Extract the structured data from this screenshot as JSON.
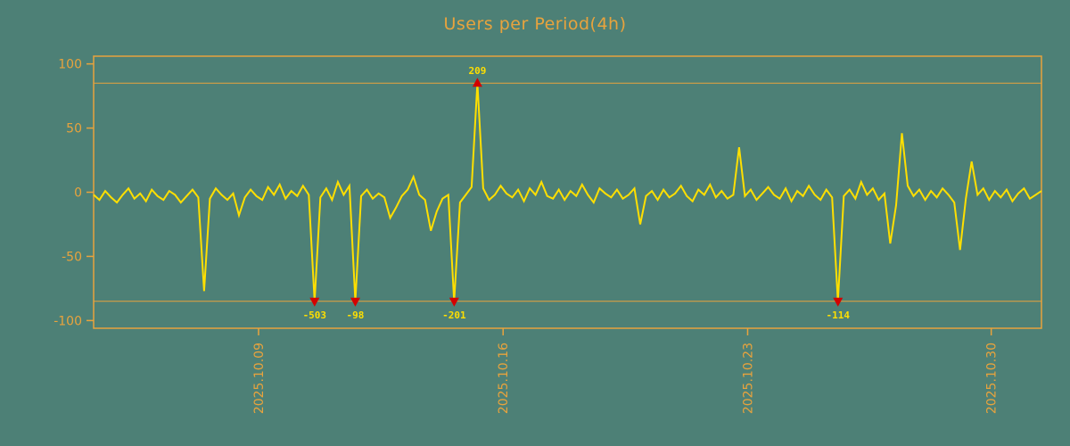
{
  "chart_data": {
    "type": "line",
    "title": "Users per Period(4h)",
    "ylabel": "",
    "xlabel": "",
    "ylim": [
      -106,
      106
    ],
    "yticks": [
      100,
      50,
      0,
      -50,
      -100
    ],
    "clip": 85,
    "grid": "off",
    "legend": "none",
    "x_axis": {
      "labels": [
        "2025.10.09",
        "2025.10.16",
        "2025.10.23",
        "2025.10.30"
      ],
      "positions": [
        0.174,
        0.432,
        0.69,
        0.947
      ]
    },
    "series": [
      {
        "name": "users",
        "values": [
          -2,
          -6,
          1,
          -4,
          -8,
          -2,
          3,
          -5,
          -1,
          -7,
          2,
          -3,
          -6,
          1,
          -2,
          -8,
          -3,
          2,
          -4,
          -77,
          -5,
          3,
          -2,
          -6,
          -1,
          -18,
          -4,
          2,
          -3,
          -6,
          4,
          -2,
          6,
          -5,
          1,
          -3,
          5,
          -2,
          -503,
          -4,
          3,
          -6,
          8,
          -2,
          5,
          -98,
          -3,
          2,
          -5,
          -1,
          -4,
          -20,
          -12,
          -3,
          2,
          12,
          -2,
          -6,
          -30,
          -15,
          -5,
          -2,
          -201,
          -8,
          -2,
          4,
          209,
          3,
          -6,
          -2,
          5,
          -1,
          -4,
          2,
          -7,
          3,
          -2,
          8,
          -3,
          -5,
          2,
          -6,
          1,
          -3,
          6,
          -2,
          -8,
          3,
          -1,
          -4,
          2,
          -5,
          -2,
          3,
          -25,
          -3,
          1,
          -6,
          2,
          -4,
          -1,
          5,
          -3,
          -7,
          2,
          -2,
          6,
          -4,
          1,
          -5,
          -2,
          35,
          -3,
          2,
          -6,
          -1,
          4,
          -2,
          -5,
          3,
          -7,
          1,
          -3,
          5,
          -2,
          -6,
          2,
          -4,
          -114,
          -3,
          2,
          -5,
          8,
          -2,
          3,
          -6,
          -1,
          -40,
          -10,
          46,
          5,
          -3,
          2,
          -6,
          1,
          -4,
          3,
          -2,
          -8,
          -45,
          -5,
          24,
          -2,
          3,
          -6,
          1,
          -4,
          2,
          -7,
          -1,
          3,
          -5,
          -2,
          1
        ]
      }
    ],
    "annotations": [
      {
        "index": 38,
        "value": -503,
        "label": "-503",
        "dir": "down"
      },
      {
        "index": 45,
        "value": -98,
        "label": "-98",
        "dir": "down"
      },
      {
        "index": 62,
        "value": -201,
        "label": "-201",
        "dir": "down"
      },
      {
        "index": 66,
        "value": 209,
        "label": "209",
        "dir": "up"
      },
      {
        "index": 128,
        "value": -114,
        "label": "-114",
        "dir": "down"
      }
    ],
    "colors": {
      "background": "#4d8076",
      "axis": "#e8a33d",
      "line": "#ffdf00",
      "marker": "#d40000"
    }
  }
}
